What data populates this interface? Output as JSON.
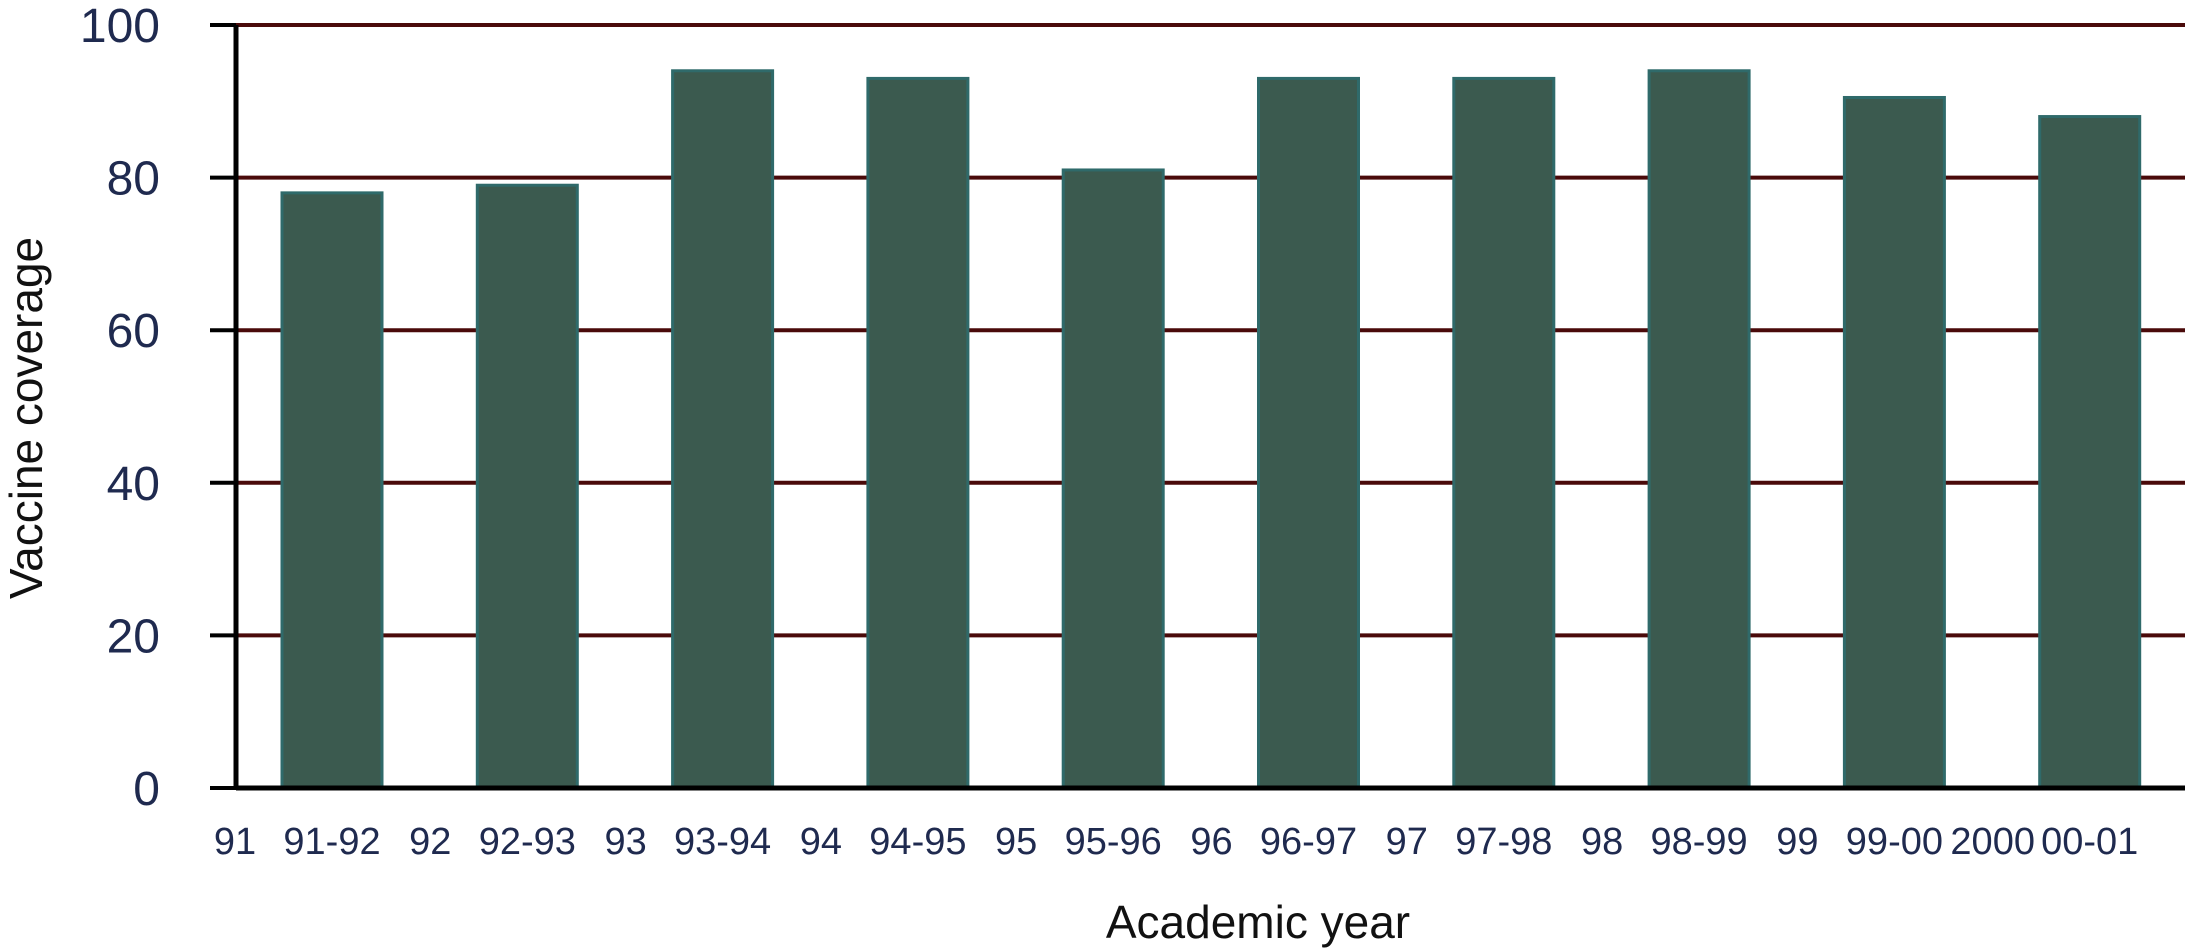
{
  "chart_data": {
    "type": "bar",
    "title": "",
    "xlabel": "Academic year",
    "ylabel": "Vaccine coverage",
    "ylim": [
      0,
      100
    ],
    "yticks": [
      0,
      20,
      40,
      60,
      80,
      100
    ],
    "grid": true,
    "legend": "none",
    "x_tick_labels": [
      "91",
      "91-92",
      "92",
      "92-93",
      "93",
      "93-94",
      "94",
      "94-95",
      "95",
      "95-96",
      "96",
      "96-97",
      "97",
      "97-98",
      "98",
      "98-99",
      "99",
      "99-00",
      "2000",
      "00-01"
    ],
    "categories": [
      "91-92",
      "92-93",
      "93-94",
      "94-95",
      "95-96",
      "96-97",
      "97-98",
      "98-99",
      "99-00",
      "00-01"
    ],
    "values": [
      78,
      79,
      94,
      93,
      81,
      93,
      93,
      94,
      90.5,
      88
    ],
    "colors": {
      "bar_fill": "#3b5a4f",
      "bar_stroke": "#2f6a6a",
      "gridline": "#4a0a0a",
      "axis": "#000000",
      "tick_text": "#1f2a4f"
    }
  }
}
